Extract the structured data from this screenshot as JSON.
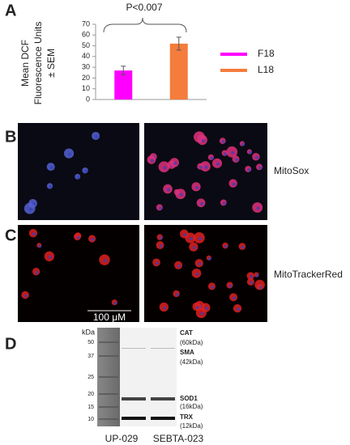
{
  "panels": {
    "a": "A",
    "b": "B",
    "c": "C",
    "d": "D"
  },
  "chart_data": {
    "type": "bar",
    "ylabel": [
      "Mean DCF",
      "Fluorescence Units",
      "± SEM"
    ],
    "annotation": "P<0.007",
    "categories": [
      null,
      null
    ],
    "series": [
      {
        "name": "F18",
        "color": "#ff00ff",
        "values": [
          27,
          null
        ],
        "errors": [
          4,
          null
        ]
      },
      {
        "name": "L18",
        "color": "#f47c3c",
        "values": [
          null,
          52
        ],
        "errors": [
          null,
          6
        ]
      }
    ],
    "ylim": [
      0,
      70
    ],
    "yticks": [
      0,
      10,
      20,
      30,
      40,
      50,
      60,
      70
    ],
    "grid": false,
    "legend": "right"
  },
  "images": {
    "row_b_label": "MitoSox",
    "row_c_label": "MitoTrackerRed",
    "scale_bar": "100 μM"
  },
  "blot": {
    "unit": "kDa",
    "markers": [
      "50",
      "37",
      "25",
      "20",
      "15",
      "10"
    ],
    "bands": [
      {
        "name": "CAT",
        "size": "(60kDa)"
      },
      {
        "name": "SMA",
        "size": "(42kDa)"
      },
      {
        "name": "SOD1",
        "size": "(16kDa)"
      },
      {
        "name": "TRX",
        "size": "(12kDa)"
      }
    ],
    "samples": [
      "UP-029",
      "SEBTA-023"
    ]
  }
}
